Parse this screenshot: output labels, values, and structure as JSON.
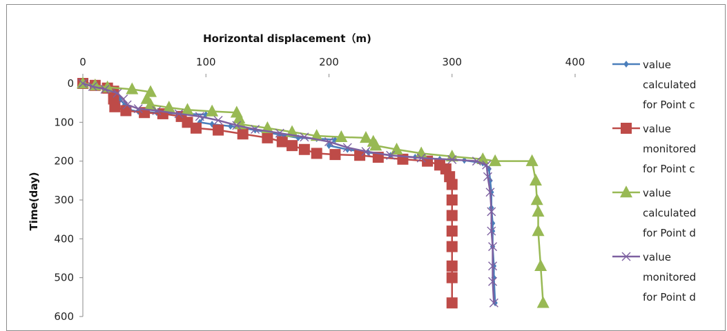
{
  "chart_data": {
    "type": "line",
    "xlabel": "Horizontal displacement（m)",
    "ylabel": "Time(day)",
    "xlim": [
      0,
      400
    ],
    "ylim": [
      0,
      600
    ],
    "x_ticks": [
      "0",
      "100",
      "200",
      "300",
      "400"
    ],
    "y_ticks": [
      "0",
      "100",
      "200",
      "300",
      "400",
      "500",
      "600"
    ],
    "x_axis_position": "top",
    "y_axis_inverted": true,
    "grid": false,
    "legend_position": "right",
    "series": [
      {
        "name_lines": [
          "value",
          "calculated",
          "for Point c"
        ],
        "color": "#4a7ebb",
        "marker": "diamond",
        "points": [
          [
            0,
            0
          ],
          [
            10,
            5
          ],
          [
            18,
            15
          ],
          [
            25,
            28
          ],
          [
            30,
            40
          ],
          [
            34,
            55
          ],
          [
            38,
            68
          ],
          [
            45,
            72
          ],
          [
            60,
            75
          ],
          [
            80,
            78
          ],
          [
            100,
            80
          ],
          [
            95,
            100
          ],
          [
            105,
            105
          ],
          [
            120,
            110
          ],
          [
            140,
            120
          ],
          [
            160,
            132
          ],
          [
            175,
            140
          ],
          [
            190,
            142
          ],
          [
            205,
            145
          ],
          [
            200,
            160
          ],
          [
            215,
            170
          ],
          [
            232,
            178
          ],
          [
            250,
            185
          ],
          [
            270,
            190
          ],
          [
            290,
            195
          ],
          [
            310,
            198
          ],
          [
            325,
            205
          ],
          [
            330,
            220
          ],
          [
            331,
            250
          ],
          [
            332,
            280
          ],
          [
            332,
            320
          ],
          [
            333,
            360
          ],
          [
            333,
            380
          ],
          [
            333,
            420
          ],
          [
            334,
            470
          ],
          [
            334,
            500
          ],
          [
            335,
            565
          ]
        ]
      },
      {
        "name_lines": [
          "value",
          "monitored",
          "for Point c"
        ],
        "color": "#be4b48",
        "marker": "square",
        "points": [
          [
            0,
            0
          ],
          [
            10,
            5
          ],
          [
            20,
            12
          ],
          [
            25,
            20
          ],
          [
            25,
            40
          ],
          [
            26,
            60
          ],
          [
            35,
            70
          ],
          [
            50,
            75
          ],
          [
            65,
            78
          ],
          [
            80,
            85
          ],
          [
            85,
            100
          ],
          [
            92,
            115
          ],
          [
            110,
            120
          ],
          [
            130,
            130
          ],
          [
            150,
            140
          ],
          [
            162,
            150
          ],
          [
            170,
            160
          ],
          [
            180,
            170
          ],
          [
            190,
            180
          ],
          [
            205,
            183
          ],
          [
            225,
            185
          ],
          [
            240,
            190
          ],
          [
            260,
            195
          ],
          [
            280,
            200
          ],
          [
            290,
            210
          ],
          [
            295,
            220
          ],
          [
            298,
            240
          ],
          [
            300,
            260
          ],
          [
            300,
            300
          ],
          [
            300,
            340
          ],
          [
            300,
            380
          ],
          [
            300,
            420
          ],
          [
            300,
            470
          ],
          [
            300,
            500
          ],
          [
            300,
            565
          ]
        ]
      },
      {
        "name_lines": [
          "value",
          "calculated",
          "for Point d"
        ],
        "color": "#98b954",
        "marker": "triangle",
        "points": [
          [
            0,
            0
          ],
          [
            10,
            5
          ],
          [
            20,
            10
          ],
          [
            40,
            15
          ],
          [
            55,
            22
          ],
          [
            52,
            40
          ],
          [
            55,
            55
          ],
          [
            70,
            62
          ],
          [
            85,
            68
          ],
          [
            105,
            72
          ],
          [
            125,
            75
          ],
          [
            127,
            90
          ],
          [
            128,
            105
          ],
          [
            150,
            115
          ],
          [
            170,
            125
          ],
          [
            190,
            135
          ],
          [
            210,
            138
          ],
          [
            230,
            140
          ],
          [
            236,
            150
          ],
          [
            238,
            160
          ],
          [
            255,
            170
          ],
          [
            275,
            180
          ],
          [
            300,
            188
          ],
          [
            325,
            195
          ],
          [
            335,
            200
          ],
          [
            365,
            200
          ],
          [
            368,
            250
          ],
          [
            369,
            300
          ],
          [
            370,
            330
          ],
          [
            370,
            380
          ],
          [
            372,
            470
          ],
          [
            374,
            565
          ]
        ]
      },
      {
        "name_lines": [
          "value",
          "monitored",
          "for Point d"
        ],
        "color": "#7d60a0",
        "marker": "x",
        "points": [
          [
            0,
            0
          ],
          [
            8,
            8
          ],
          [
            18,
            15
          ],
          [
            28,
            25
          ],
          [
            33,
            40
          ],
          [
            36,
            55
          ],
          [
            45,
            65
          ],
          [
            60,
            70
          ],
          [
            78,
            78
          ],
          [
            95,
            85
          ],
          [
            110,
            95
          ],
          [
            125,
            108
          ],
          [
            140,
            118
          ],
          [
            160,
            128
          ],
          [
            180,
            138
          ],
          [
            200,
            150
          ],
          [
            215,
            165
          ],
          [
            230,
            175
          ],
          [
            250,
            185
          ],
          [
            275,
            192
          ],
          [
            300,
            196
          ],
          [
            320,
            200
          ],
          [
            328,
            210
          ],
          [
            329,
            240
          ],
          [
            331,
            280
          ],
          [
            332,
            330
          ],
          [
            332,
            380
          ],
          [
            333,
            420
          ],
          [
            333,
            470
          ],
          [
            333,
            510
          ],
          [
            334,
            565
          ]
        ]
      }
    ]
  }
}
